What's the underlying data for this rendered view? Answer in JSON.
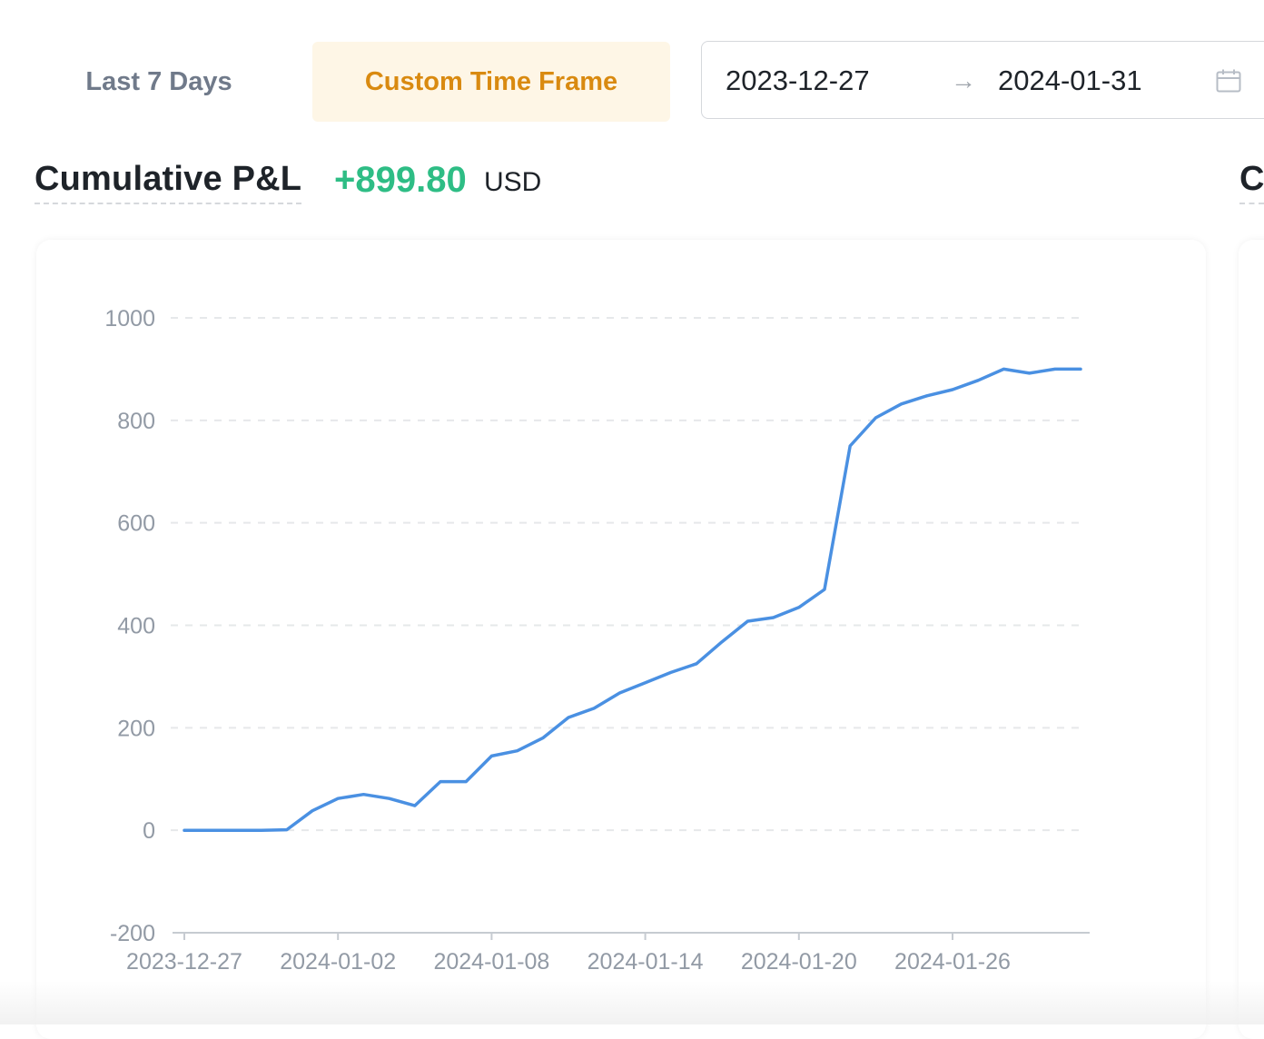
{
  "tabs": [
    {
      "label": "Last 7 Days",
      "active": false
    },
    {
      "label": "Custom Time Frame",
      "active": true
    }
  ],
  "date_range": {
    "start": "2023-12-27",
    "arrow": "→",
    "end": "2024-01-31",
    "icon": "calendar-icon"
  },
  "pnl": {
    "title": "Cumulative P&L",
    "value": "+899.80",
    "unit": "USD",
    "value_color": "#2ebd85"
  },
  "next_section_title_cut": "C",
  "colors": {
    "accent": "#d98a10",
    "accent_bg": "#fef6e6",
    "line": "#4a90e2"
  },
  "chart_data": {
    "type": "line",
    "title": "",
    "xlabel": "",
    "ylabel": "",
    "ylim": [
      -200,
      1000
    ],
    "yticks": [
      1000,
      800,
      600,
      400,
      200,
      0,
      -200
    ],
    "xticks": [
      "2023-12-27",
      "2024-01-02",
      "2024-01-08",
      "2024-01-14",
      "2024-01-20",
      "2024-01-26"
    ],
    "grid": true,
    "x_start": "2023-12-27",
    "series": [
      {
        "x": [
          "2023-12-27",
          "2023-12-28",
          "2023-12-29",
          "2023-12-30",
          "2023-12-31",
          "2024-01-01",
          "2024-01-02",
          "2024-01-03",
          "2024-01-04",
          "2024-01-05",
          "2024-01-06",
          "2024-01-07",
          "2024-01-08",
          "2024-01-09",
          "2024-01-10",
          "2024-01-11",
          "2024-01-12",
          "2024-01-13",
          "2024-01-14",
          "2024-01-15",
          "2024-01-16",
          "2024-01-17",
          "2024-01-18",
          "2024-01-19",
          "2024-01-20",
          "2024-01-21",
          "2024-01-22",
          "2024-01-23",
          "2024-01-24",
          "2024-01-25",
          "2024-01-26",
          "2024-01-27",
          "2024-01-28",
          "2024-01-29",
          "2024-01-30",
          "2024-01-31"
        ],
        "values": [
          0,
          0,
          0,
          0,
          1,
          38,
          62,
          70,
          62,
          48,
          95,
          95,
          145,
          155,
          180,
          220,
          238,
          268,
          288,
          308,
          325,
          368,
          408,
          415,
          435,
          470,
          750,
          805,
          832,
          848,
          860,
          878,
          900,
          892,
          900,
          900
        ]
      }
    ]
  }
}
